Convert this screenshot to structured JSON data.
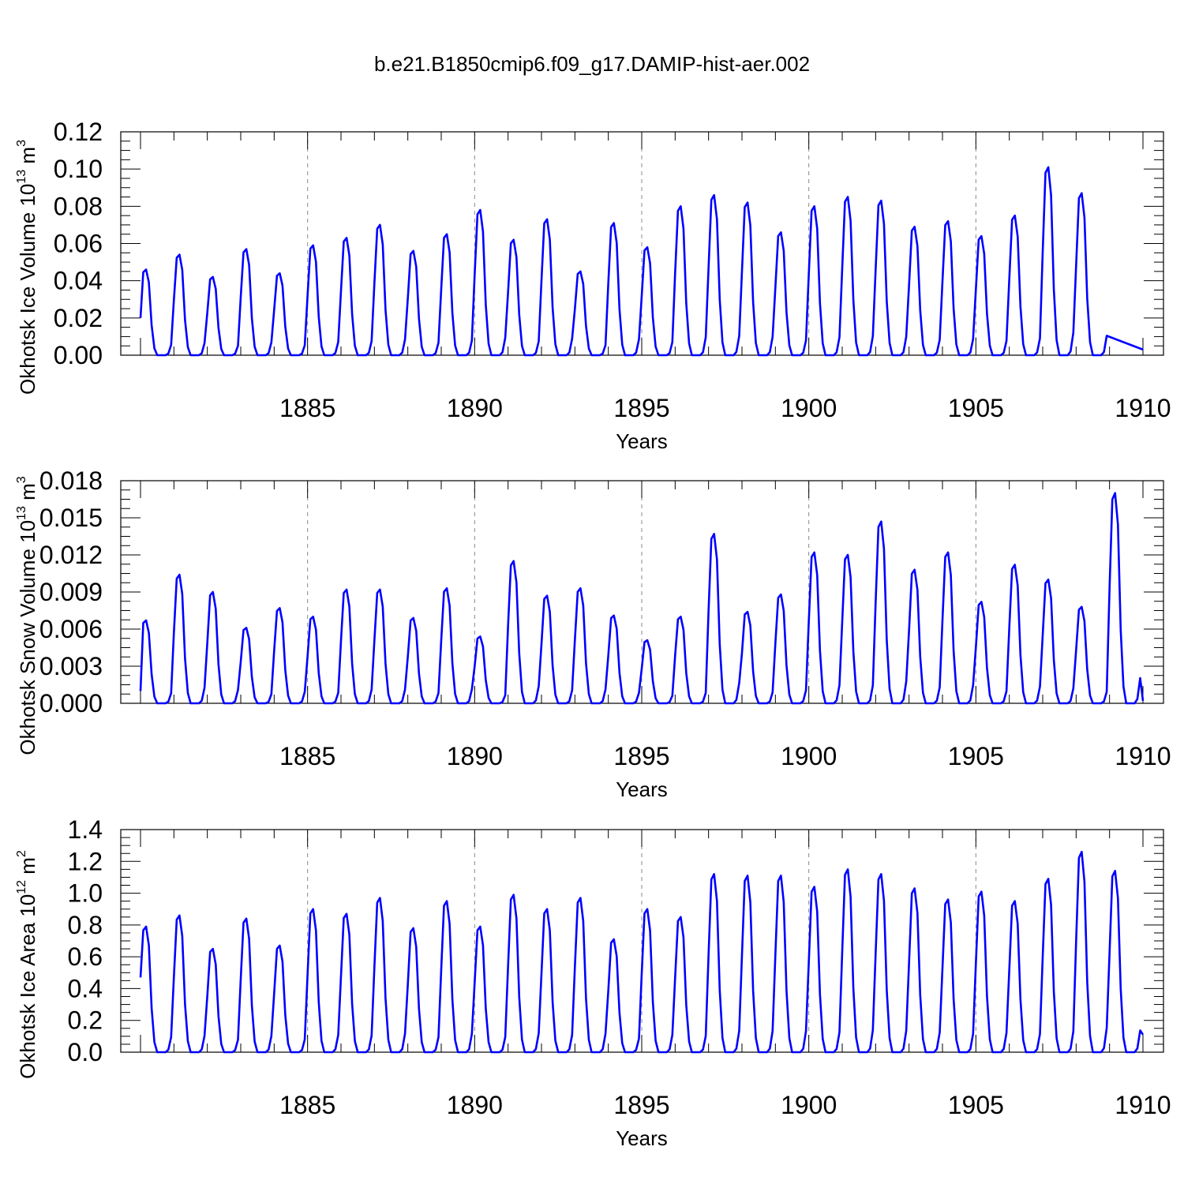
{
  "title": "b.e21.B1850cmip6.f09_g17.DAMIP-hist-aer.002",
  "colors": {
    "series": "#0000ff",
    "axis": "#000000",
    "grid": "#888888"
  },
  "chart_data": [
    {
      "type": "line",
      "name": "okhotsk-ice-volume",
      "title": "b.e21.B1850cmip6.f09_g17.DAMIP-hist-aer.002",
      "xlabel": "Years",
      "ylabel": {
        "main": "Okhotsk Ice Volume 10",
        "exp": "13",
        "unit": " m",
        "unit_exp": "3"
      },
      "xlim": [
        1880,
        1910
      ],
      "ylim": [
        0,
        0.12
      ],
      "yticks": [
        "0.00",
        "0.02",
        "0.04",
        "0.06",
        "0.08",
        "0.10",
        "0.12"
      ],
      "ytick_values": [
        0,
        0.02,
        0.04,
        0.06,
        0.08,
        0.1,
        0.12
      ],
      "xticks": [
        "1885",
        "1890",
        "1895",
        "1900",
        "1905",
        "1910"
      ],
      "xtick_values": [
        1885,
        1890,
        1895,
        1900,
        1905,
        1910
      ],
      "grid_x": [
        1885,
        1890,
        1895,
        1900,
        1905
      ],
      "start_value": 0.02,
      "end_value": 0.003,
      "annual_peaks": [
        0.046,
        0.054,
        0.042,
        0.057,
        0.044,
        0.059,
        0.063,
        0.07,
        0.056,
        0.065,
        0.078,
        0.062,
        0.073,
        0.045,
        0.071,
        0.058,
        0.08,
        0.086,
        0.082,
        0.066,
        0.08,
        0.085,
        0.083,
        0.069,
        0.072,
        0.064,
        0.075,
        0.101,
        0.087
      ]
    },
    {
      "type": "line",
      "name": "okhotsk-snow-volume",
      "xlabel": "Years",
      "ylabel": {
        "main": "Okhotsk Snow Volume 10",
        "exp": "13",
        "unit": " m",
        "unit_exp": "3"
      },
      "xlim": [
        1880,
        1910
      ],
      "ylim": [
        0,
        0.018
      ],
      "yticks": [
        "0.000",
        "0.003",
        "0.006",
        "0.009",
        "0.012",
        "0.015",
        "0.018"
      ],
      "ytick_values": [
        0,
        0.003,
        0.006,
        0.009,
        0.012,
        0.015,
        0.018
      ],
      "xticks": [
        "1885",
        "1890",
        "1895",
        "1900",
        "1905",
        "1910"
      ],
      "xtick_values": [
        1885,
        1890,
        1895,
        1900,
        1905,
        1910
      ],
      "grid_x": [
        1885,
        1890,
        1895,
        1900,
        1905
      ],
      "start_value": 0.001,
      "end_value": 0.0002,
      "annual_peaks": [
        0.0067,
        0.0104,
        0.009,
        0.0061,
        0.0077,
        0.007,
        0.0092,
        0.0092,
        0.0069,
        0.0093,
        0.0054,
        0.0115,
        0.0087,
        0.0093,
        0.0071,
        0.0051,
        0.007,
        0.0137,
        0.0074,
        0.0088,
        0.0122,
        0.012,
        0.0147,
        0.0108,
        0.0122,
        0.0082,
        0.0112,
        0.01,
        0.0078,
        0.017
      ]
    },
    {
      "type": "line",
      "name": "okhotsk-ice-area",
      "xlabel": "Years",
      "ylabel": {
        "main": "Okhotsk Ice Area 10",
        "exp": "12",
        "unit": " m",
        "unit_exp": "2"
      },
      "xlim": [
        1880,
        1910
      ],
      "ylim": [
        0,
        1.4
      ],
      "yticks": [
        "0.0",
        "0.2",
        "0.4",
        "0.6",
        "0.8",
        "1.0",
        "1.2",
        "1.4"
      ],
      "ytick_values": [
        0,
        0.2,
        0.4,
        0.6,
        0.8,
        1.0,
        1.2,
        1.4
      ],
      "xticks": [
        "1885",
        "1890",
        "1895",
        "1900",
        "1905",
        "1910"
      ],
      "xtick_values": [
        1885,
        1890,
        1895,
        1900,
        1905,
        1910
      ],
      "grid_x": [
        1885,
        1890,
        1895,
        1900,
        1905
      ],
      "start_value": 0.47,
      "end_value": 0.11,
      "annual_peaks": [
        0.79,
        0.86,
        0.65,
        0.84,
        0.67,
        0.9,
        0.87,
        0.97,
        0.78,
        0.95,
        0.79,
        0.99,
        0.9,
        0.97,
        0.71,
        0.9,
        0.85,
        1.12,
        1.11,
        1.11,
        1.04,
        1.15,
        1.12,
        1.03,
        0.96,
        1.01,
        0.95,
        1.09,
        1.26,
        1.14
      ]
    }
  ]
}
